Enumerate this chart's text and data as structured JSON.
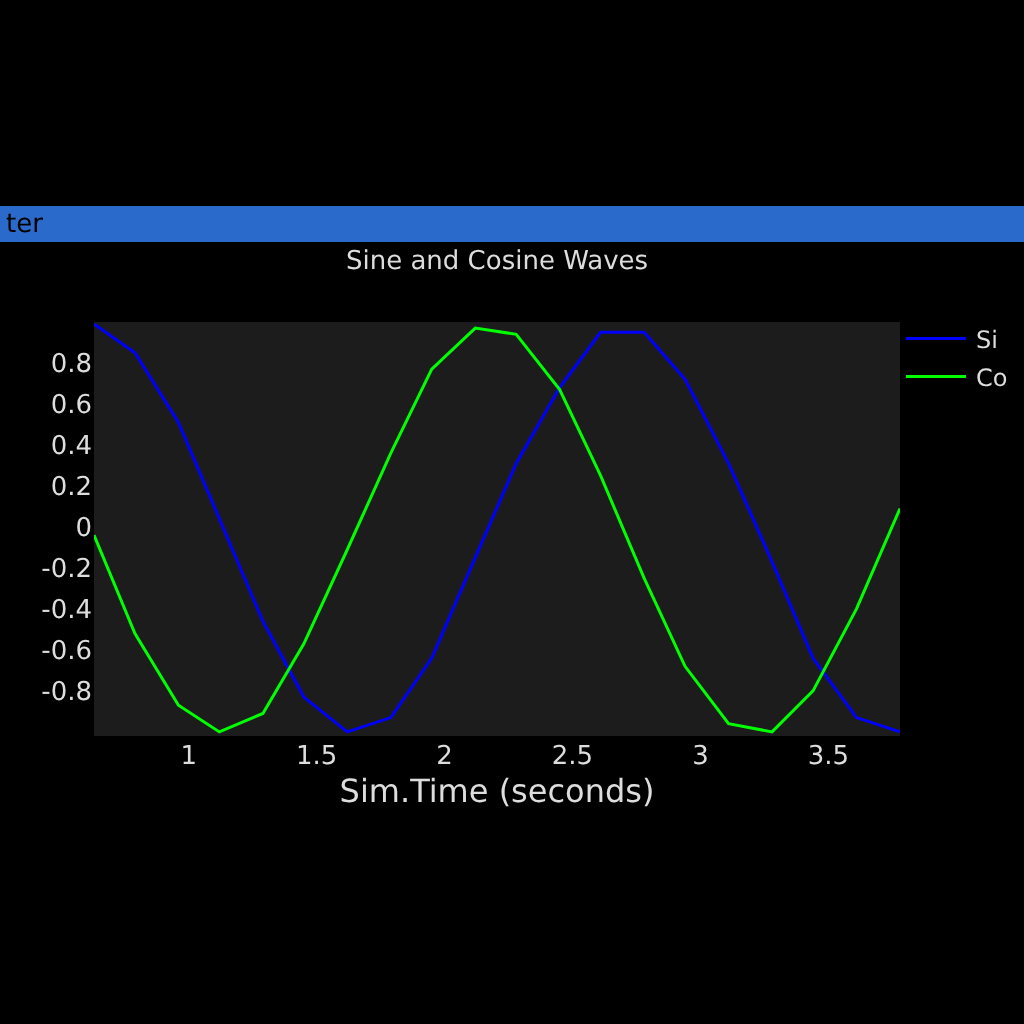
{
  "chart_data": {
    "type": "line",
    "title": "Sine and Cosine Waves",
    "xlabel": "Sim.Time (seconds)",
    "annotations": [
      "ter"
    ],
    "x": [
      0.63,
      0.79,
      0.96,
      1.12,
      1.29,
      1.45,
      1.62,
      1.79,
      1.95,
      2.12,
      2.28,
      2.45,
      2.61,
      2.78,
      2.94,
      3.11,
      3.28,
      3.44,
      3.61,
      3.78
    ],
    "series": [
      {
        "name": "Si",
        "color": "#0000ff",
        "values": [
          0.99,
          0.85,
          0.51,
          0.04,
          -0.46,
          -0.83,
          -1.0,
          -0.93,
          -0.64,
          -0.15,
          0.31,
          0.68,
          0.95,
          0.95,
          0.72,
          0.31,
          -0.17,
          -0.64,
          -0.93,
          -1.0
        ]
      },
      {
        "name": "Co",
        "color": "#00ff00",
        "values": [
          -0.04,
          -0.52,
          -0.87,
          -1.0,
          -0.91,
          -0.57,
          -0.11,
          0.36,
          0.77,
          0.97,
          0.94,
          0.67,
          0.25,
          -0.25,
          -0.68,
          -0.96,
          -1.0,
          -0.8,
          -0.4,
          0.09
        ]
      }
    ],
    "xlim": [
      0.63,
      3.78
    ],
    "xticks": [
      1,
      1.5,
      2,
      2.5,
      3,
      3.5
    ],
    "ylim": [
      -1.02,
      1.0
    ],
    "yticks": [
      -0.8,
      -0.6,
      -0.4,
      -0.2,
      0,
      0.2,
      0.4,
      0.6,
      0.8
    ],
    "grid": false,
    "legend": "top right",
    "marker": "none",
    "line_style": "solid"
  }
}
